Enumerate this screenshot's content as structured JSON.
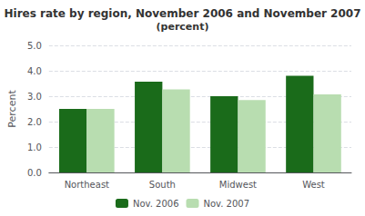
{
  "chart_data": {
    "type": "bar",
    "title": "Hires rate by region, November 2006 and November 2007",
    "subtitle": "(percent)",
    "categories": [
      "Northeast",
      "South",
      "Midwest",
      "West"
    ],
    "series": [
      {
        "name": "Nov. 2006",
        "color": "#1a6b1a",
        "values": [
          2.5,
          3.57,
          3.0,
          3.8
        ]
      },
      {
        "name": "Nov. 2007",
        "color": "#b8ddb0",
        "values": [
          2.5,
          3.27,
          2.85,
          3.07
        ]
      }
    ],
    "ylabel": "Percent",
    "ylim": [
      0,
      5.0
    ],
    "yticks": [
      {
        "value": 0,
        "label": "0.0"
      },
      {
        "value": 1,
        "label": "1.0"
      },
      {
        "value": 2,
        "label": "2.0"
      },
      {
        "value": 3,
        "label": "3.0"
      },
      {
        "value": 4,
        "label": "4.0"
      },
      {
        "value": 5,
        "label": "5.0"
      }
    ],
    "grid": true,
    "legend": "bottom"
  }
}
